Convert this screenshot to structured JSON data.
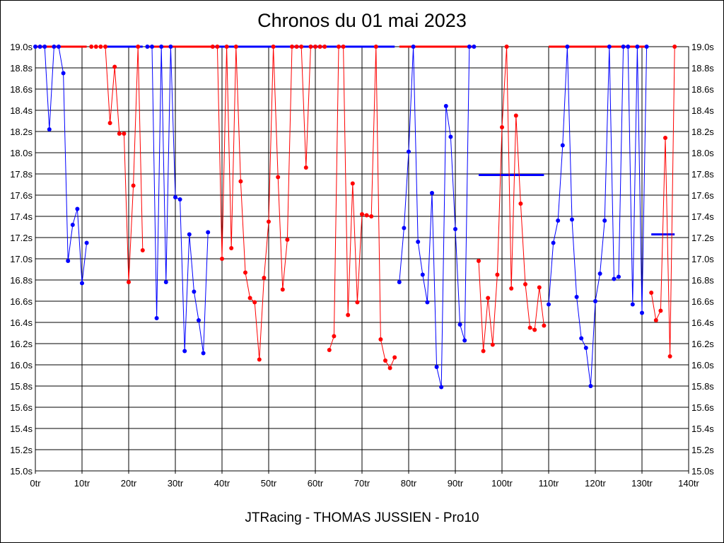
{
  "chart_data": {
    "type": "line",
    "title": "Chronos du 01 mai 2023",
    "footer": "JTRacing - THOMAS JUSSIEN - Pro10",
    "x_ticks": [
      "0tr",
      "10tr",
      "20tr",
      "30tr",
      "40tr",
      "50tr",
      "60tr",
      "70tr",
      "80tr",
      "90tr",
      "100tr",
      "110tr",
      "120tr",
      "130tr",
      "140tr"
    ],
    "y_ticks": [
      "15.0s",
      "15.2s",
      "15.4s",
      "15.6s",
      "15.8s",
      "16.0s",
      "16.2s",
      "16.4s",
      "16.6s",
      "16.8s",
      "17.0s",
      "17.2s",
      "17.4s",
      "17.6s",
      "17.8s",
      "18.0s",
      "18.2s",
      "18.4s",
      "18.6s",
      "18.8s",
      "19.0s"
    ],
    "xlim": [
      0,
      140
    ],
    "ylim": [
      15.0,
      19.0
    ],
    "grid": true,
    "y_cap": 19.0,
    "series": [
      {
        "color": "#0000ff",
        "x": [
          0,
          1,
          2,
          3,
          4,
          5,
          6,
          7,
          8,
          9,
          10,
          11
        ],
        "y": [
          19.0,
          19.0,
          19.0,
          18.22,
          19.0,
          19.0,
          18.75,
          16.98,
          17.32,
          17.47,
          16.77,
          17.15
        ]
      },
      {
        "color": "#ff0000",
        "x": [
          12,
          13,
          14,
          15,
          16,
          17,
          18,
          19,
          20,
          21,
          22,
          23
        ],
        "y": [
          19.0,
          19.0,
          19.0,
          19.0,
          18.28,
          18.81,
          18.18,
          18.18,
          16.78,
          17.69,
          19.0,
          17.08
        ]
      },
      {
        "color": "#0000ff",
        "x": [
          24,
          25,
          26,
          27,
          28,
          29,
          30,
          31,
          32,
          33,
          34,
          35,
          36,
          37
        ],
        "y": [
          19.0,
          19.0,
          16.44,
          19.0,
          16.78,
          19.0,
          17.58,
          17.56,
          16.13,
          17.23,
          16.69,
          16.42,
          16.11,
          17.25
        ]
      },
      {
        "color": "#ff0000",
        "x": [
          38,
          39,
          40,
          41,
          42,
          43,
          44,
          45,
          46,
          47,
          48,
          49,
          50,
          51,
          52,
          53,
          54,
          55,
          56,
          57,
          58,
          59,
          60,
          61,
          62
        ],
        "y": [
          19.0,
          19.0,
          17.0,
          19.0,
          17.1,
          19.0,
          17.73,
          16.87,
          16.63,
          16.59,
          16.05,
          16.82,
          17.35,
          19.0,
          17.77,
          16.71,
          17.18,
          19.0,
          19.0,
          19.0,
          17.86,
          19.0,
          19.0,
          19.0,
          19.0
        ]
      },
      {
        "color": "#ff0000",
        "x": [
          63,
          64,
          65,
          66,
          67,
          68,
          69,
          70,
          71,
          72,
          73,
          74,
          75,
          76,
          77
        ],
        "y": [
          16.14,
          16.27,
          19.0,
          19.0,
          16.47,
          17.71,
          16.59,
          17.42,
          17.41,
          17.4,
          19.0,
          16.24,
          16.04,
          15.97,
          16.07
        ]
      },
      {
        "color": "#0000ff",
        "x": [
          78,
          79,
          80,
          81,
          82,
          83,
          84,
          85,
          86,
          87,
          88,
          89,
          90,
          91,
          92,
          93,
          94
        ],
        "y": [
          16.78,
          17.29,
          18.01,
          19.0,
          17.16,
          16.85,
          16.59,
          17.62,
          15.98,
          15.79,
          18.44,
          18.15,
          17.28,
          16.38,
          16.23,
          19.0,
          19.0
        ]
      },
      {
        "color": "#ff0000",
        "x": [
          95,
          96,
          97,
          98,
          99,
          100,
          101,
          102,
          103,
          104,
          105,
          106,
          107,
          108,
          109
        ],
        "y": [
          16.98,
          16.13,
          16.63,
          16.19,
          16.85,
          18.24,
          19.0,
          16.72,
          18.35,
          17.52,
          16.76,
          16.35,
          16.33,
          16.73,
          16.37
        ]
      },
      {
        "color": "#0000ff",
        "x": [
          110,
          111,
          112,
          113,
          114,
          115,
          116,
          117,
          118,
          119,
          120,
          121,
          122,
          123,
          124,
          125,
          126,
          127,
          128,
          129,
          130,
          131
        ],
        "y": [
          16.57,
          17.15,
          17.36,
          18.07,
          19.0,
          17.37,
          16.64,
          16.25,
          16.16,
          15.8,
          16.6,
          16.86,
          17.36,
          19.0,
          16.81,
          16.83,
          19.0,
          19.0,
          16.57,
          19.0,
          16.49,
          19.0
        ]
      },
      {
        "color": "#ff0000",
        "x": [
          132,
          133,
          134,
          135,
          136,
          137
        ],
        "y": [
          16.68,
          16.42,
          16.51,
          18.14,
          16.08,
          19.0
        ]
      }
    ],
    "reference_lines": [
      {
        "color": "#ff0000",
        "x": [
          0,
          11
        ],
        "y": 19.0
      },
      {
        "color": "#0000ff",
        "x": [
          15,
          23
        ],
        "y": 19.0
      },
      {
        "color": "#ff0000",
        "x": [
          24,
          38
        ],
        "y": 19.0
      },
      {
        "color": "#0000ff",
        "x": [
          38,
          77
        ],
        "y": 19.0
      },
      {
        "color": "#ff0000",
        "x": [
          78,
          94
        ],
        "y": 19.0
      },
      {
        "color": "#0000ff",
        "x": [
          95,
          109
        ],
        "y": 17.79
      },
      {
        "color": "#ff0000",
        "x": [
          110,
          131
        ],
        "y": 19.0
      },
      {
        "color": "#0000ff",
        "x": [
          132,
          137
        ],
        "y": 17.23
      }
    ]
  }
}
